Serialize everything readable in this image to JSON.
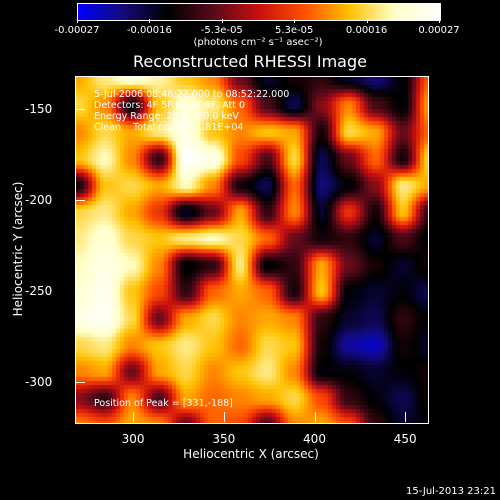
{
  "colorbar": {
    "tick_labels": [
      "-0.00027",
      "-0.00016",
      "-5.3e-05",
      "5.3e-05",
      "0.00016",
      "0.00027"
    ],
    "units_label": "(photons cm⁻² s⁻¹ asec⁻²)",
    "stops": [
      "#0000ff",
      "#140a7a",
      "#000000",
      "#5a0a1a",
      "#c81010",
      "#ff5000",
      "#ffc000",
      "#ffffc8",
      "#ffffff"
    ]
  },
  "info": {
    "time_range": "5-Jul-2006 08:46:22.000 to 08:52:22.000",
    "detectors": "Detectors: 4F 5F 6F 7F 8F, Att 0",
    "energy": "Energy Range: 25.0 - 50.0 keV",
    "clean": "Clean    Total counts: 1.81E+04",
    "peak": "Position of Peak = [331,-188]"
  },
  "footer": {
    "timestamp": "15-Jul-2013 23:21"
  },
  "chart_data": {
    "type": "heatmap",
    "title": "Reconstructed RHESSI Image",
    "xlabel": "Heliocentric X (arcsec)",
    "ylabel": "Heliocentric Y (arcsec)",
    "xlim": [
      268,
      462
    ],
    "ylim": [
      -322,
      -132
    ],
    "xticks": [
      "300",
      "350",
      "400",
      "450"
    ],
    "yticks": [
      "-150",
      "-200",
      "-250",
      "-300"
    ],
    "colorbar_range": [
      -0.00027,
      0.00027
    ],
    "peak": [
      331,
      -188
    ],
    "x": [
      272,
      286,
      300,
      314,
      328,
      342,
      356,
      370,
      384,
      398,
      412,
      426,
      440,
      454
    ],
    "y": [
      -140,
      -154,
      -168,
      -182,
      -196,
      -210,
      -224,
      -238,
      -252,
      -266,
      -280,
      -294,
      -308,
      -322
    ],
    "values": [
      [
        0.00012,
        0.00018,
        0.00022,
        0.00019,
        0.00014,
        0.0001,
        -6e-05,
        -0.00016,
        -0.00012,
        -0.0001,
        -0.00016,
        -0.0002,
        -0.00014,
        8e-05
      ],
      [
        0.00016,
        0.0001,
        -0.00014,
        0.00014,
        0.00022,
        0.00018,
        8e-05,
        -8e-05,
        -0.00018,
        -4e-05,
        0.0001,
        -8e-05,
        -0.00014,
        0.00012
      ],
      [
        0.0001,
        0.00016,
        0.00012,
        0.00018,
        0.00024,
        0.00014,
        0.0001,
        0.00014,
        0.00012,
        -0.00012,
        0.00016,
        0.00012,
        -6e-05,
        8e-05
      ],
      [
        0.00014,
        0.0002,
        0.0001,
        -0.0001,
        0.00027,
        0.00024,
        6e-05,
        -8e-05,
        0.00016,
        -0.00018,
        -6e-05,
        8e-05,
        -0.00012,
        0.00016
      ],
      [
        -0.00012,
        0.00014,
        0.00016,
        0.00012,
        0.0002,
        0.0001,
        -0.00012,
        -0.00018,
        8e-05,
        -0.0002,
        -0.00014,
        -4e-05,
        0.00018,
        0.00012
      ],
      [
        0.00016,
        0.00018,
        0.00012,
        4e-05,
        -0.00016,
        -6e-05,
        0.00012,
        -0.0001,
        0.0001,
        -0.00016,
        4e-05,
        -0.00012,
        0.00014,
        -0.0001
      ],
      [
        0.00018,
        0.00022,
        0.00016,
        0.00014,
        0.00018,
        0.0002,
        0.00016,
        8e-05,
        -6e-05,
        -0.00012,
        -0.0001,
        -0.00016,
        -8e-05,
        -0.00014
      ],
      [
        0.0002,
        0.00024,
        0.0002,
        0.0001,
        -0.00014,
        -0.0001,
        0.00018,
        -0.00014,
        -0.0001,
        0.00012,
        -6e-05,
        -0.00012,
        -0.00016,
        -0.00012
      ],
      [
        0.00022,
        0.00025,
        0.00014,
        6e-05,
        -0.0001,
        8e-05,
        0.00012,
        8e-05,
        -0.00012,
        0.00014,
        -0.00014,
        -0.00016,
        -0.00014,
        -0.00018
      ],
      [
        0.00024,
        0.00026,
        0.00016,
        -6e-05,
        0.00012,
        0.00016,
        0.0001,
        0.00012,
        0.0001,
        -0.0001,
        -0.00016,
        -0.00018,
        -0.0001,
        -0.00014
      ],
      [
        0.00016,
        0.00018,
        0.0001,
        0.00014,
        0.00018,
        0.00014,
        8e-05,
        0.00016,
        0.00014,
        -0.00012,
        -0.00022,
        -0.00024,
        -0.00012,
        -0.00016
      ],
      [
        0.0001,
        0.00012,
        -6e-05,
        0.00012,
        0.00016,
        0.0001,
        0.00014,
        0.00018,
        0.0001,
        -0.00014,
        -0.00014,
        -0.00016,
        -0.00014,
        -0.00012
      ],
      [
        -4e-05,
        -0.0001,
        0.0001,
        -8e-05,
        0.00012,
        8e-05,
        0.0001,
        0.00012,
        0.00016,
        6e-05,
        -0.0001,
        -0.00014,
        -0.00018,
        -0.00012
      ],
      [
        0.0001,
        6e-05,
        0.00012,
        0.0001,
        -6e-05,
        8e-05,
        6e-05,
        -8e-05,
        0.0001,
        0.00012,
        6e-05,
        -0.0001,
        -0.00016,
        -0.00014
      ]
    ]
  }
}
